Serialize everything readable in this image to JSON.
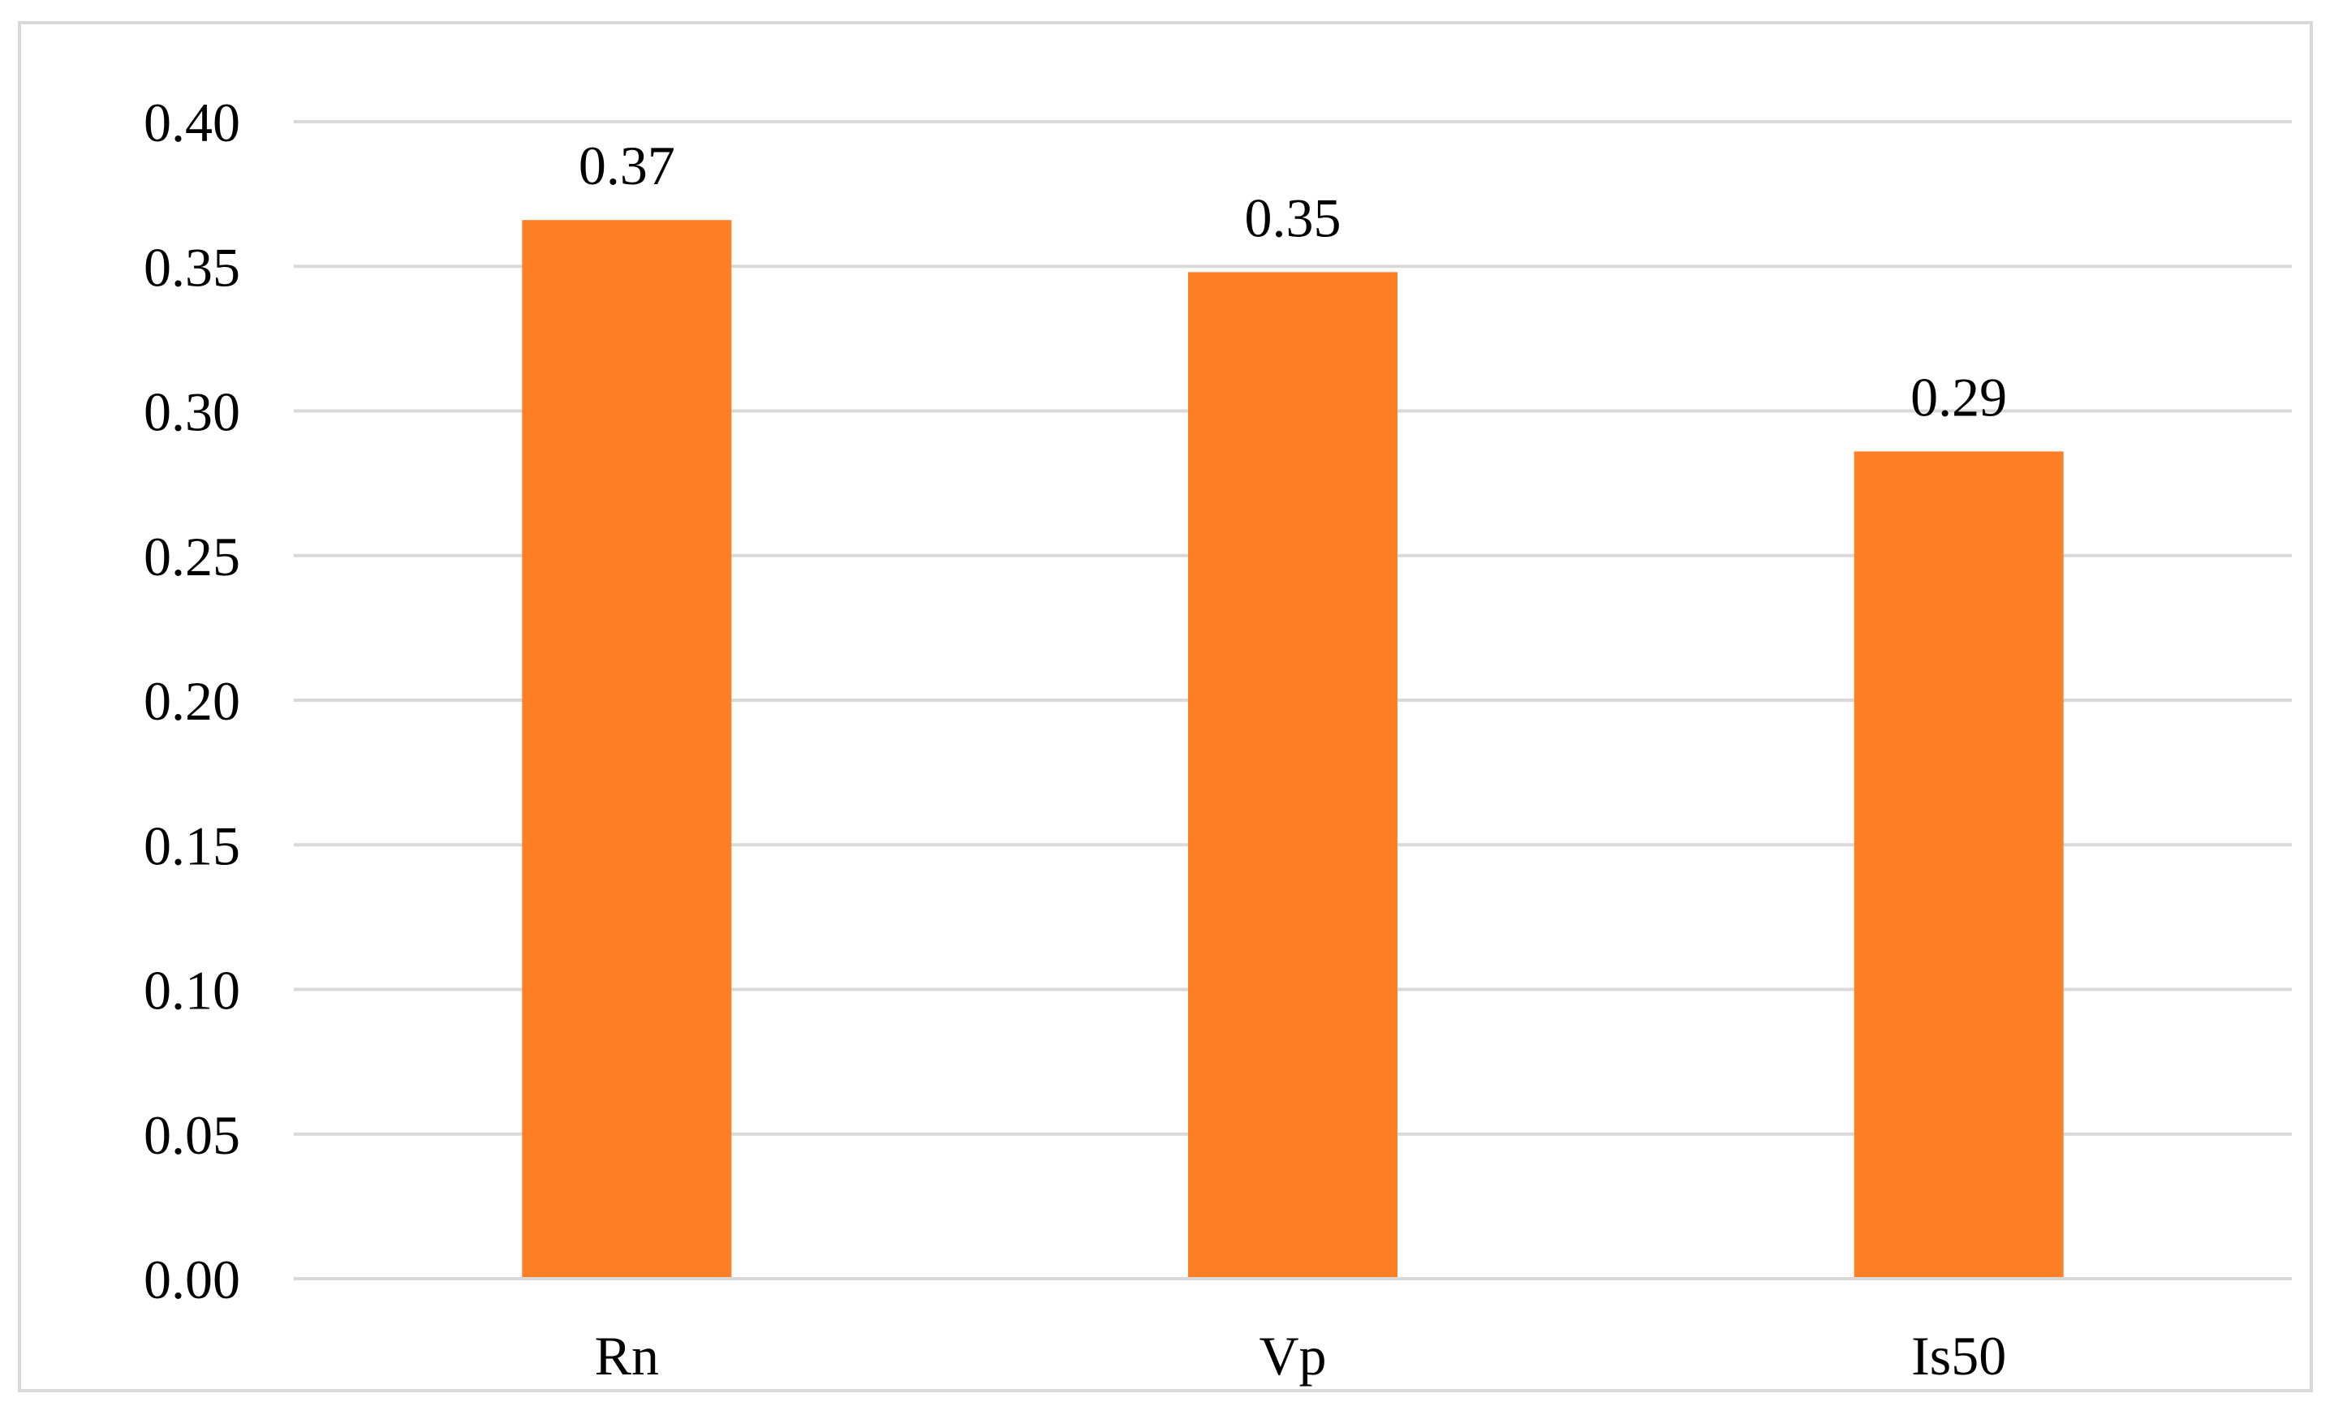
{
  "chart_data": {
    "type": "bar",
    "title": "",
    "xlabel": "",
    "ylabel": "",
    "categories": [
      "Rn",
      "Vp",
      "Is50"
    ],
    "values": [
      0.366,
      0.348,
      0.286
    ],
    "data_labels": [
      "0.37",
      "0.35",
      "0.29"
    ],
    "yticks": [
      "0.00",
      "0.05",
      "0.10",
      "0.15",
      "0.20",
      "0.25",
      "0.30",
      "0.35",
      "0.40"
    ],
    "ylim": [
      0,
      0.4
    ],
    "grid": true,
    "legend": "none",
    "colors": {
      "bar": "#FF7F27",
      "grid": "#d9d9d9",
      "frame": "#d9d9d9",
      "text": "#000000"
    }
  }
}
